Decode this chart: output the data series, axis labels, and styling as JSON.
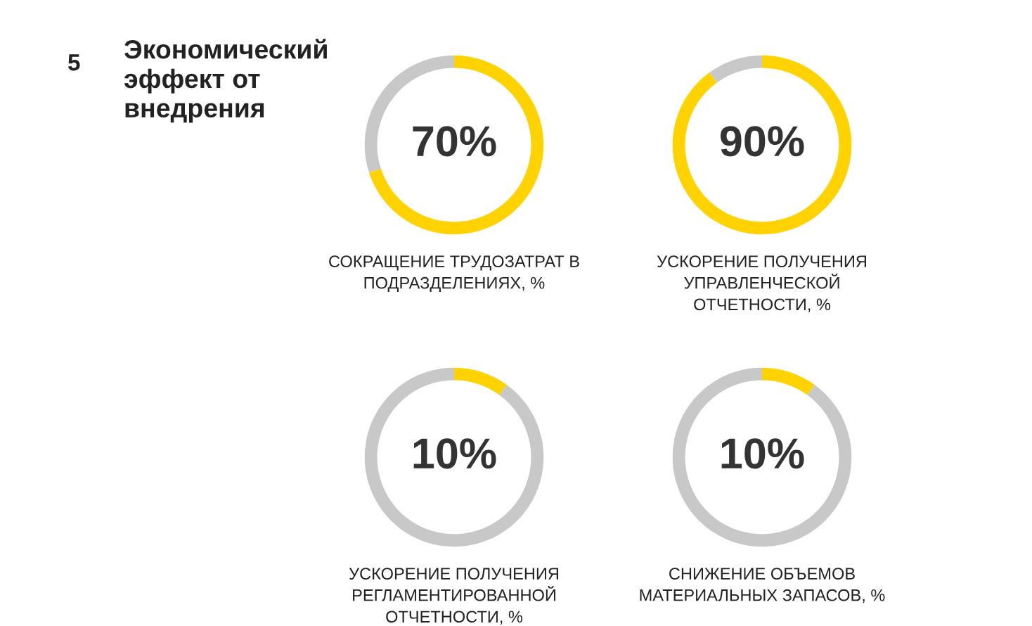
{
  "chart_data": [
    {
      "type": "donut",
      "title": "Экономический\nэффект от\nвнедрения",
      "annotations": [
        "5"
      ],
      "categories": [
        null,
        null
      ],
      "values": [
        70,
        30
      ],
      "colors": [
        "#ffd200",
        "#c8c8c8"
      ],
      "value_labels": [
        "70%",
        null
      ],
      "xlabel": "СОКРАЩЕНИЕ ТРУДОЗАТРАТ В\nПОДРАЗДЕЛЕНИЯХ, %"
    },
    {
      "type": "donut",
      "categories": [
        null,
        null
      ],
      "values": [
        90,
        10
      ],
      "colors": [
        "#ffd200",
        "#c8c8c8"
      ],
      "value_labels": [
        "90%",
        null
      ],
      "xlabel": "УСКОРЕНИЕ ПОЛУЧЕНИЯ\nУПРАВЛЕНЧЕСКОЙ\nОТЧЕТНОСТИ, %"
    },
    {
      "type": "donut",
      "categories": [
        null,
        null
      ],
      "values": [
        10,
        90
      ],
      "colors": [
        "#ffd200",
        "#c8c8c8"
      ],
      "value_labels": [
        "10%",
        null
      ],
      "xlabel": "УСКОРЕНИЕ ПОЛУЧЕНИЯ\nРЕГЛАМЕНТИРОВАННОЙ\nОТЧЕТНОСТИ, %"
    },
    {
      "type": "donut",
      "categories": [
        null,
        null
      ],
      "values": [
        10,
        90
      ],
      "colors": [
        "#ffd200",
        "#c8c8c8"
      ],
      "value_labels": [
        "10%",
        null
      ],
      "xlabel": "СНИЖЕНИЕ ОБЪЕМОВ\nМАТЕРИАЛЬНЫХ ЗАПАСОВ, %"
    }
  ]
}
